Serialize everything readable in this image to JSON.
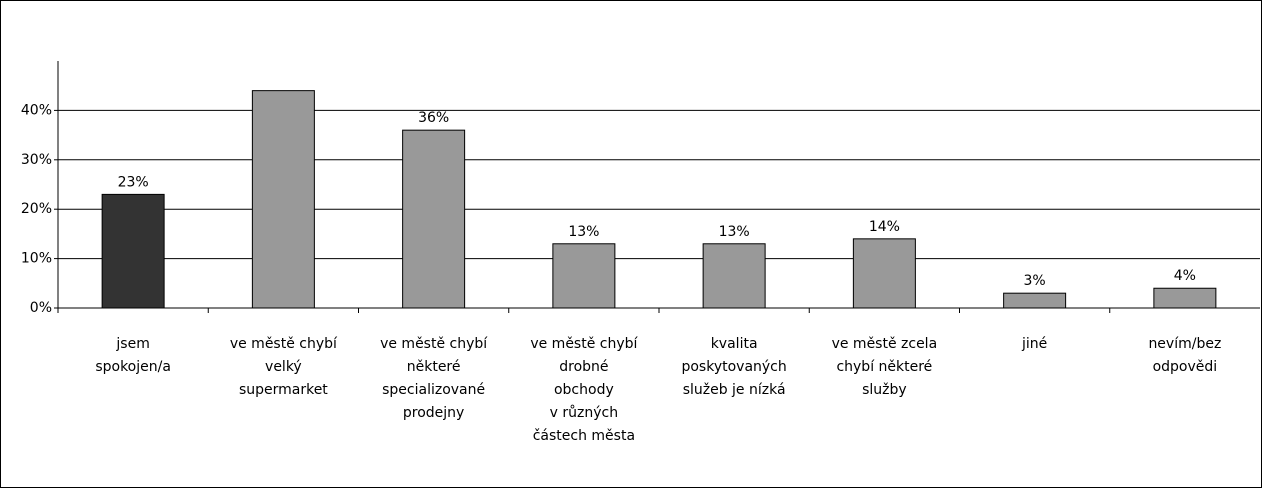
{
  "chart_data": {
    "type": "bar",
    "categories": [
      "jsem\nspokojen/a",
      "ve městě chybí\nvelký\nsupermarket",
      "ve městě chybí\nněkteré\nspecializované\nprodejny",
      "ve městě chybí\ndrobné\nobchody\nv různých\nčástech města",
      "kvalita\nposkytovaných\nslužeb je nízká",
      "ve městě zcela\nchybí některé\nslužby",
      "jiné",
      "nevím/bez\nodpovědi"
    ],
    "values": [
      23,
      44,
      36,
      13,
      13,
      14,
      3,
      4
    ],
    "value_labels": [
      "23%",
      null,
      "36%",
      "13%",
      "13%",
      "14%",
      "3%",
      "4%"
    ],
    "colors": [
      "#333333",
      "#999999",
      "#999999",
      "#999999",
      "#999999",
      "#999999",
      "#999999",
      "#999999"
    ],
    "ylim": [
      0,
      50
    ],
    "yticks": [
      {
        "value": 0,
        "label": "0%"
      },
      {
        "value": 10,
        "label": "10%"
      },
      {
        "value": 20,
        "label": "20%"
      },
      {
        "value": 30,
        "label": "30%"
      },
      {
        "value": 40,
        "label": "40%"
      }
    ],
    "grid": true
  }
}
